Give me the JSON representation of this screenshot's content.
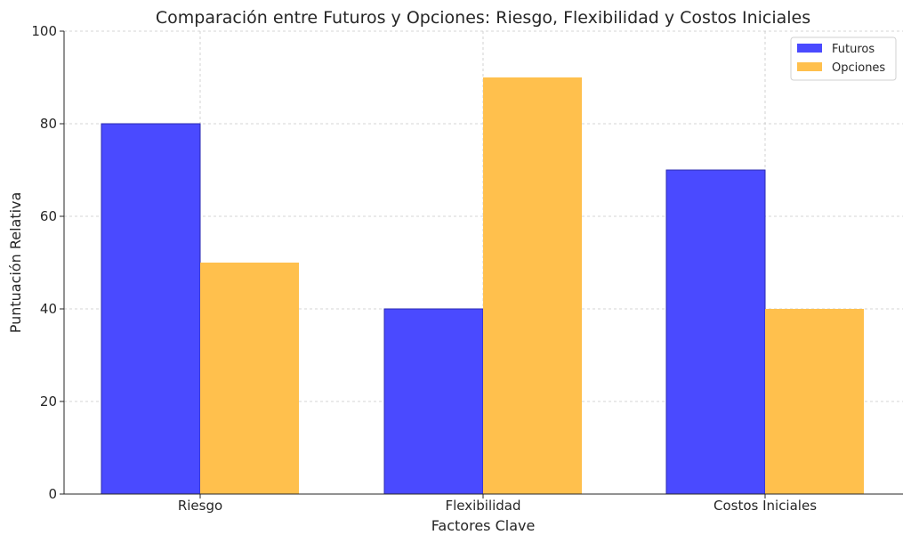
{
  "chart_data": {
    "type": "bar",
    "title": "Comparación entre Futuros y Opciones: Riesgo, Flexibilidad y Costos Iniciales",
    "xlabel": "Factores Clave",
    "ylabel": "Puntuación Relativa",
    "categories": [
      "Riesgo",
      "Flexibilidad",
      "Costos Iniciales"
    ],
    "series": [
      {
        "name": "Futuros",
        "values": [
          80,
          40,
          70
        ],
        "color": "#4a4aff"
      },
      {
        "name": "Opciones",
        "values": [
          50,
          90,
          40
        ],
        "color": "#ffc04d"
      }
    ],
    "ylim": [
      0,
      100
    ],
    "yticks": [
      "0",
      "20",
      "40",
      "60",
      "80",
      "100"
    ],
    "grid": true,
    "legend_position": "top-right"
  }
}
